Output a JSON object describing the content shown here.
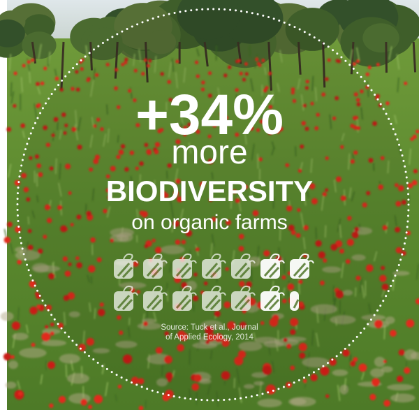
{
  "headline": {
    "figure": "+34%",
    "line1": "more",
    "line2": "BIODIVERSITY",
    "line3": "on organic farms"
  },
  "source": [
    "Source: Tuck et al., Journal",
    "of Applied Ecology, 2014"
  ]
}
